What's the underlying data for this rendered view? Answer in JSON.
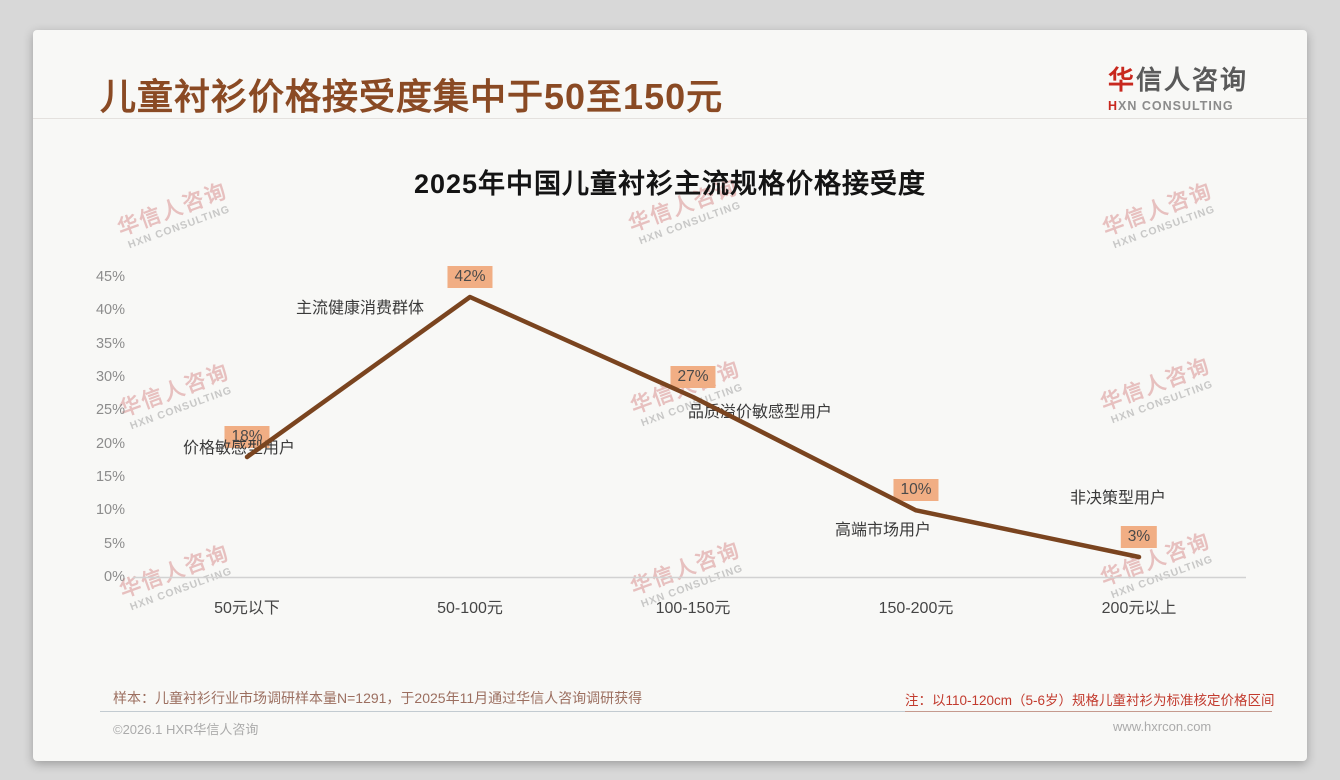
{
  "page": {
    "title": "儿童衬衫价格接受度集中于50至150元",
    "logo": {
      "brand_first": "华",
      "brand_rest": "信人咨询",
      "subtitle_first": "H",
      "subtitle_rest": "XN CONSULTING"
    },
    "watermark": {
      "line1": "华信人咨询",
      "line2": "HXN CONSULTING"
    },
    "footer": {
      "sample_note": "样本：儿童衬衫行业市场调研样本量N=1291，于2025年11月通过华信人咨询调研获得",
      "price_note": "注：以110-120cm（5-6岁）规格儿童衬衫为标准核定价格区间",
      "copyright": "©2026.1 HXR华信人咨询",
      "website": "www.hxrcon.com"
    },
    "colors": {
      "title_brown": "#8a4a24",
      "logo_red": "#c8281e",
      "note_red": "#c23b2e",
      "axis_gray": "#d2d2d2"
    }
  },
  "chart_data": {
    "type": "line",
    "title": "2025年中国儿童衬衫主流规格价格接受度",
    "categories": [
      "50元以下",
      "50-100元",
      "100-150元",
      "150-200元",
      "200元以上"
    ],
    "values": [
      18,
      42,
      27,
      10,
      3
    ],
    "unit": "%",
    "yticks": [
      45,
      40,
      35,
      30,
      25,
      20,
      15,
      10,
      5,
      0
    ],
    "ylim": [
      0,
      45
    ],
    "xlabel": "",
    "ylabel": "",
    "grid": false,
    "legend": "none",
    "line_color": "#7a441f",
    "badge_color": "#f1ae84",
    "annotations": [
      "价格敏感型用户",
      "主流健康消费群体",
      "品质溢价敏感型用户",
      "高端市场用户",
      "非决策型用户"
    ]
  }
}
